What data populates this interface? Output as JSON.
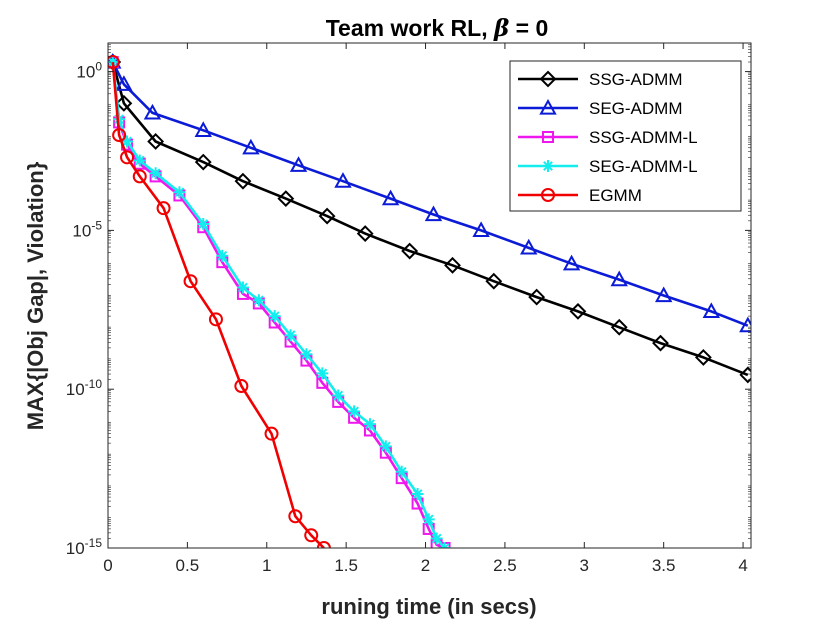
{
  "chart_data": {
    "type": "line",
    "title": "Team work RL, β = 0",
    "title_parts": {
      "prefix": "Team work RL, ",
      "symbol": "β",
      "suffix": " = 0"
    },
    "xlabel": "runing time (in secs)",
    "ylabel": "MAX{|Obj Gap|, Violation}",
    "xlim": [
      0,
      4.05
    ],
    "ylim_log10": [
      -15,
      0.9
    ],
    "yscale": "log",
    "xticks": [
      0,
      0.5,
      1,
      1.5,
      2,
      2.5,
      3,
      3.5,
      4
    ],
    "xtick_labels": [
      "0",
      "0.5",
      "1",
      "1.5",
      "2",
      "2.5",
      "3",
      "3.5",
      "4"
    ],
    "yticks_log10": [
      0,
      -5,
      -10,
      -15
    ],
    "ytick_labels": [
      {
        "base": "10",
        "exp": "0"
      },
      {
        "base": "10",
        "exp": "-5"
      },
      {
        "base": "10",
        "exp": "-10"
      },
      {
        "base": "10",
        "exp": "-15"
      }
    ],
    "legend_position": "top-right",
    "series": [
      {
        "name": "SSG-ADMM",
        "color": "#000000",
        "marker": "diamond",
        "x": [
          0.03,
          0.1,
          0.3,
          0.6,
          0.85,
          1.12,
          1.38,
          1.62,
          1.9,
          2.17,
          2.43,
          2.7,
          2.96,
          3.22,
          3.48,
          3.75,
          4.03
        ],
        "log10_y": [
          0.3,
          -1.0,
          -2.2,
          -2.85,
          -3.45,
          -4.0,
          -4.55,
          -5.1,
          -5.65,
          -6.1,
          -6.6,
          -7.1,
          -7.55,
          -8.05,
          -8.55,
          -9.0,
          -9.55
        ]
      },
      {
        "name": "SEG-ADMM",
        "color": "#0b1bd6",
        "marker": "triangle",
        "x": [
          0.03,
          0.1,
          0.28,
          0.6,
          0.9,
          1.2,
          1.48,
          1.78,
          2.05,
          2.35,
          2.65,
          2.92,
          3.22,
          3.5,
          3.8,
          4.03
        ],
        "log10_y": [
          0.3,
          -0.4,
          -1.3,
          -1.85,
          -2.4,
          -2.95,
          -3.45,
          -4.0,
          -4.5,
          -5.0,
          -5.55,
          -6.05,
          -6.55,
          -7.05,
          -7.55,
          -8.0
        ]
      },
      {
        "name": "SSG-ADMM-L",
        "color": "#ee18ee",
        "marker": "square",
        "x": [
          0.03,
          0.07,
          0.12,
          0.2,
          0.3,
          0.45,
          0.6,
          0.72,
          0.85,
          0.95,
          1.05,
          1.15,
          1.25,
          1.35,
          1.45,
          1.55,
          1.65,
          1.75,
          1.85,
          1.95,
          2.02,
          2.07,
          2.12
        ],
        "log10_y": [
          0.3,
          -1.6,
          -2.3,
          -2.9,
          -3.3,
          -3.9,
          -4.9,
          -6.0,
          -7.0,
          -7.3,
          -7.9,
          -8.5,
          -9.1,
          -9.8,
          -10.4,
          -10.9,
          -11.3,
          -12.0,
          -12.8,
          -13.6,
          -14.4,
          -14.9,
          -15.0
        ]
      },
      {
        "name": "SEG-ADMM-L",
        "color": "#14eded",
        "marker": "asterisk",
        "x": [
          0.03,
          0.07,
          0.12,
          0.2,
          0.3,
          0.45,
          0.6,
          0.72,
          0.85,
          0.95,
          1.05,
          1.15,
          1.25,
          1.35,
          1.45,
          1.55,
          1.65,
          1.75,
          1.85,
          1.95,
          2.02,
          2.07,
          2.12
        ],
        "log10_y": [
          0.3,
          -1.5,
          -2.2,
          -2.8,
          -3.2,
          -3.8,
          -4.8,
          -5.8,
          -6.8,
          -7.2,
          -7.7,
          -8.3,
          -8.9,
          -9.5,
          -10.2,
          -10.7,
          -11.1,
          -11.8,
          -12.6,
          -13.3,
          -14.1,
          -14.7,
          -15.0
        ]
      },
      {
        "name": "EGMM",
        "color": "#f00000",
        "marker": "circle",
        "x": [
          0.03,
          0.07,
          0.12,
          0.2,
          0.35,
          0.52,
          0.68,
          0.84,
          1.03,
          1.18,
          1.28,
          1.36
        ],
        "log10_y": [
          0.3,
          -2.0,
          -2.7,
          -3.3,
          -4.3,
          -6.6,
          -7.8,
          -9.9,
          -11.4,
          -14.0,
          -14.6,
          -15.0
        ]
      }
    ]
  }
}
